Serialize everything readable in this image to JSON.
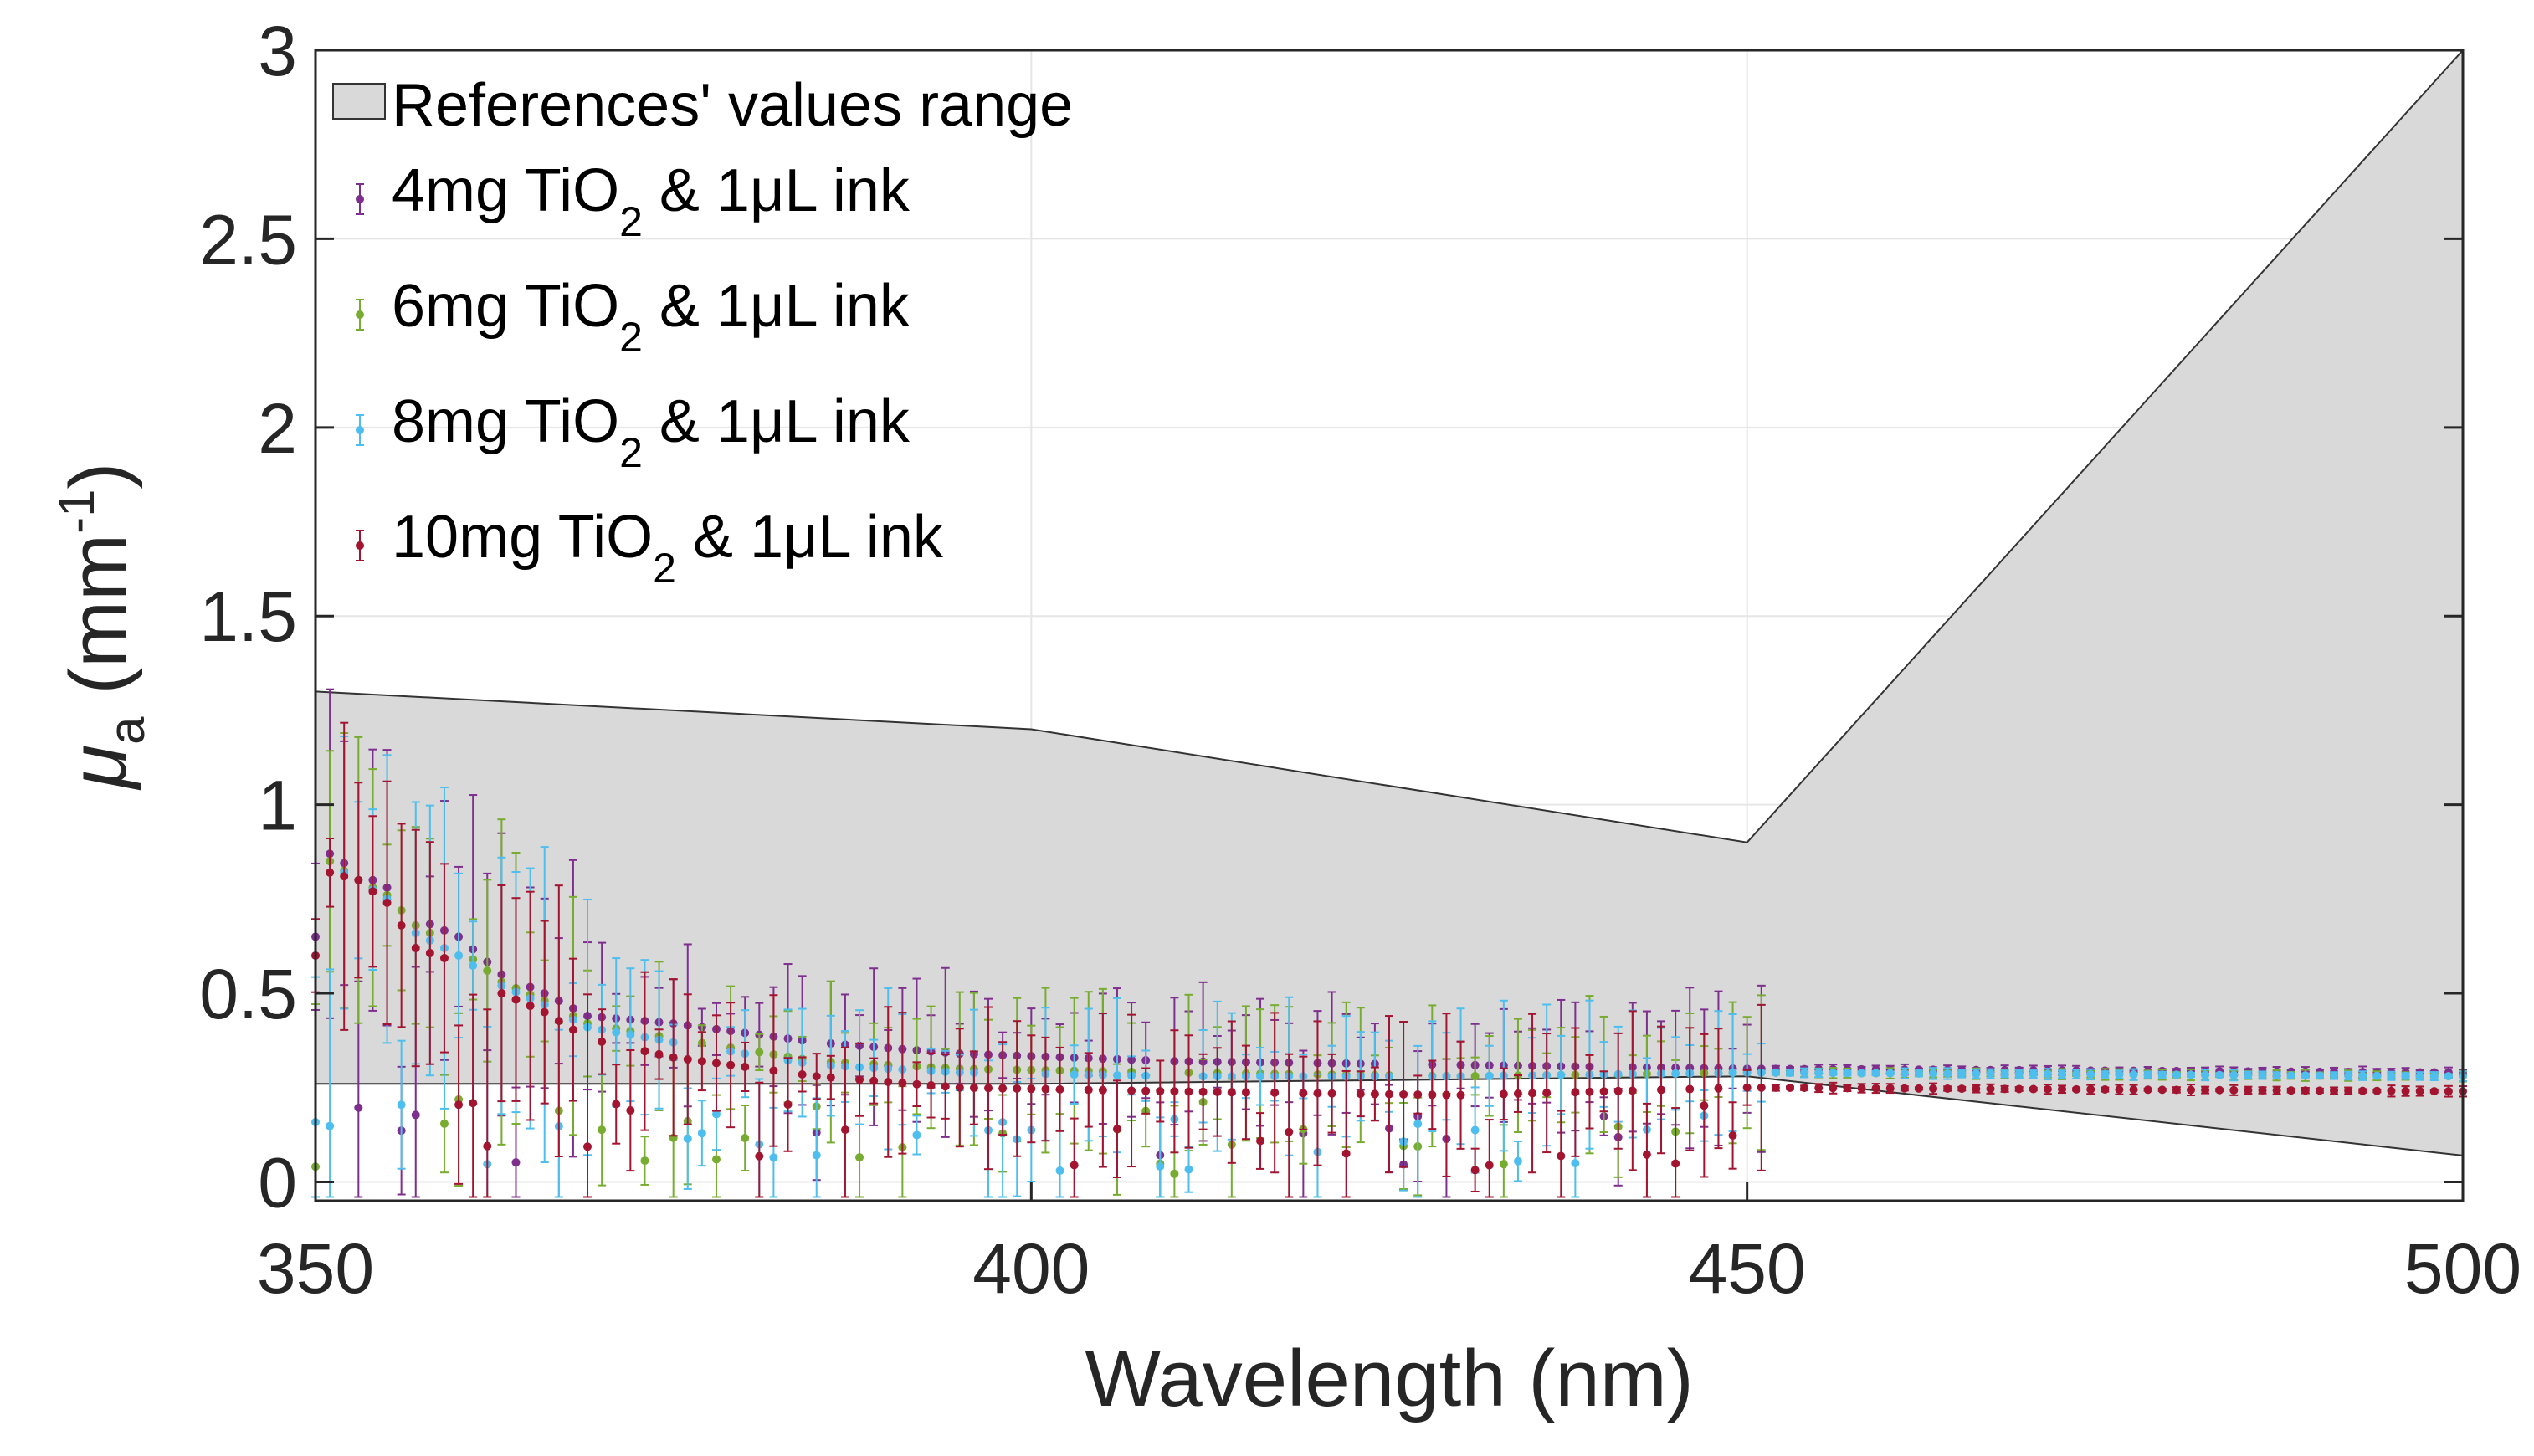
{
  "chart_data": {
    "type": "scatter",
    "xlabel": "Wavelength (nm)",
    "ylabel_main": "μ",
    "ylabel_sub": "a",
    "ylabel_unit_pre": " (mm",
    "ylabel_unit_sup": "-1",
    "ylabel_unit_post": ")",
    "xlim": [
      350,
      500
    ],
    "ylim": [
      -0.05,
      3
    ],
    "x_ticks": [
      350,
      400,
      450,
      500
    ],
    "x_tick_labels": [
      "350",
      "400",
      "450",
      "500"
    ],
    "y_ticks": [
      0,
      0.5,
      1,
      1.5,
      2,
      2.5,
      3
    ],
    "y_tick_labels": [
      "0",
      "0.5",
      "1",
      "1.5",
      "2",
      "2.5",
      "3"
    ],
    "grid": true,
    "legend_position": "top-left",
    "reference_range": {
      "name": "References' values range",
      "color": "#d9d9d9",
      "upper": [
        [
          350,
          1.3
        ],
        [
          400,
          1.2
        ],
        [
          450,
          0.9
        ],
        [
          500,
          3.0
        ]
      ],
      "lower": [
        [
          350,
          0.26
        ],
        [
          400,
          0.26
        ],
        [
          450,
          0.28
        ],
        [
          500,
          0.07
        ]
      ]
    },
    "series": [
      {
        "legend_pre": "4mg TiO",
        "legend_sub": "2",
        "legend_post": " & 1μL ink",
        "color": "#7e2f8e",
        "anchors": [
          [
            350,
            0.65
          ],
          [
            351,
            0.87
          ],
          [
            353,
            0.82
          ],
          [
            355,
            0.78
          ],
          [
            357,
            0.7
          ],
          [
            360,
            0.65
          ],
          [
            363,
            0.55
          ],
          [
            366,
            0.5
          ],
          [
            369,
            0.44
          ],
          [
            375,
            0.42
          ],
          [
            385,
            0.37
          ],
          [
            395,
            0.34
          ],
          [
            410,
            0.32
          ],
          [
            430,
            0.31
          ],
          [
            450,
            0.3
          ],
          [
            500,
            0.29
          ]
        ]
      },
      {
        "legend_pre": "6mg TiO",
        "legend_sub": "2",
        "legend_post": " & 1μL ink",
        "color": "#77ac30",
        "anchors": [
          [
            350,
            0.62
          ],
          [
            351,
            0.85
          ],
          [
            353,
            0.8
          ],
          [
            355,
            0.76
          ],
          [
            357,
            0.68
          ],
          [
            360,
            0.62
          ],
          [
            363,
            0.53
          ],
          [
            366,
            0.48
          ],
          [
            369,
            0.42
          ],
          [
            375,
            0.38
          ],
          [
            385,
            0.32
          ],
          [
            395,
            0.3
          ],
          [
            410,
            0.29
          ],
          [
            430,
            0.28
          ],
          [
            450,
            0.29
          ],
          [
            500,
            0.28
          ]
        ]
      },
      {
        "legend_pre": "8mg TiO",
        "legend_sub": "2",
        "legend_post": " & 1μL ink",
        "color": "#4dbeee",
        "anchors": [
          [
            350,
            0.6
          ],
          [
            351,
            0.84
          ],
          [
            353,
            0.8
          ],
          [
            355,
            0.75
          ],
          [
            357,
            0.66
          ],
          [
            360,
            0.6
          ],
          [
            363,
            0.52
          ],
          [
            366,
            0.47
          ],
          [
            369,
            0.41
          ],
          [
            375,
            0.37
          ],
          [
            385,
            0.31
          ],
          [
            395,
            0.29
          ],
          [
            410,
            0.28
          ],
          [
            430,
            0.28
          ],
          [
            450,
            0.29
          ],
          [
            500,
            0.28
          ]
        ]
      },
      {
        "legend_pre": "10mg TiO",
        "legend_sub": "2",
        "legend_post": " & 1μL ink",
        "color": "#a2142f",
        "anchors": [
          [
            350,
            0.6
          ],
          [
            351,
            0.82
          ],
          [
            353,
            0.8
          ],
          [
            355,
            0.74
          ],
          [
            357,
            0.62
          ],
          [
            360,
            0.58
          ],
          [
            363,
            0.5
          ],
          [
            366,
            0.45
          ],
          [
            369,
            0.38
          ],
          [
            375,
            0.33
          ],
          [
            385,
            0.28
          ],
          [
            395,
            0.25
          ],
          [
            410,
            0.24
          ],
          [
            430,
            0.23
          ],
          [
            450,
            0.25
          ],
          [
            500,
            0.24
          ]
        ]
      }
    ]
  }
}
